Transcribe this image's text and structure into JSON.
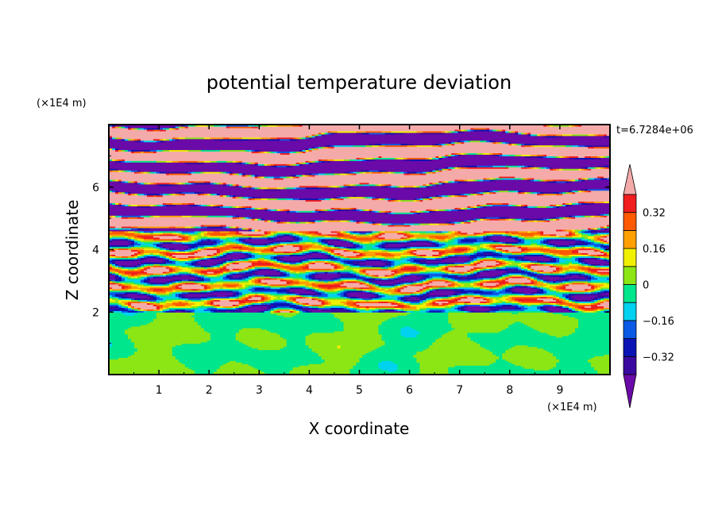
{
  "chart_data": {
    "type": "heatmap",
    "title": "potential temperature deviation",
    "xlabel": "X coordinate",
    "ylabel": "Z coordinate",
    "x_unit": "(×1E4 m)",
    "y_unit": "(×1E4 m)",
    "time_label": "t=6.7284e+06",
    "xlim": [
      0,
      10
    ],
    "ylim": [
      0,
      8
    ],
    "x_ticks": [
      1,
      2,
      3,
      4,
      5,
      6,
      7,
      8,
      9
    ],
    "y_ticks": [
      2,
      4,
      6
    ],
    "x_tick_labels": [
      "1",
      "2",
      "3",
      "4",
      "5",
      "6",
      "7",
      "8",
      "9"
    ],
    "y_tick_labels": [
      "2",
      "4",
      "6"
    ],
    "colorbar": {
      "levels": [
        -0.48,
        -0.4,
        -0.32,
        -0.24,
        -0.16,
        -0.08,
        0,
        0.08,
        0.16,
        0.24,
        0.32,
        0.4,
        0.48
      ],
      "colors": [
        "#6a0aa8",
        "#3a0aa0",
        "#0a14b4",
        "#0a5ae6",
        "#00d2f0",
        "#00e68c",
        "#8ce614",
        "#f0f000",
        "#ffa000",
        "#ff5a00",
        "#f01e1e",
        "#f5aaaa"
      ],
      "extend": "both",
      "tick_values": [
        0.32,
        0.16,
        0,
        -0.16,
        -0.32
      ],
      "tick_labels": [
        "0.32",
        "0.16",
        "0",
        "−0.16",
        "−0.32"
      ]
    },
    "regions": [
      {
        "z_range": [
          0,
          2.0
        ],
        "description_values": [
          -0.08,
          0.08
        ],
        "pattern": "smooth"
      },
      {
        "z_range": [
          2.0,
          4.6
        ],
        "description_values": [
          -0.48,
          0.48
        ],
        "pattern": "turbulent mixed layers"
      },
      {
        "z_range": [
          4.6,
          8.0
        ],
        "description_values": [
          -0.48,
          0.48
        ],
        "pattern": "alternating saturated layers"
      }
    ]
  }
}
